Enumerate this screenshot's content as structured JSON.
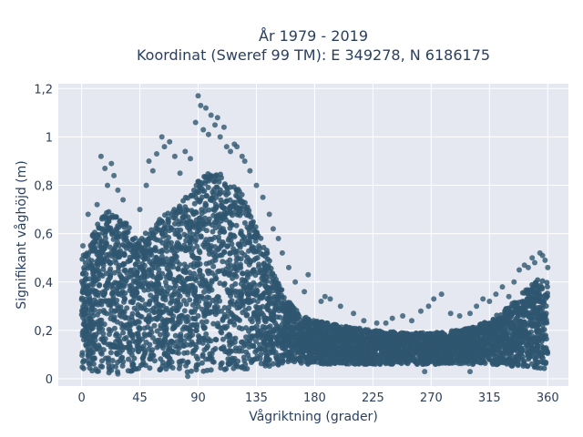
{
  "chart_data": {
    "type": "scatter",
    "title_line1": "År 1979 - 2019",
    "title_line2": "Koordinat (Sweref 99 TM): E 349278, N 6186175",
    "xlabel": "Vågriktning (grader)",
    "ylabel": "Signifikant våghöjd (m)",
    "xlim": [
      -18,
      376
    ],
    "ylim": [
      -0.03,
      1.22
    ],
    "x_ticks": [
      0,
      45,
      90,
      135,
      180,
      225,
      270,
      315,
      360
    ],
    "x_tick_labels": [
      "0",
      "45",
      "90",
      "135",
      "180",
      "225",
      "270",
      "315",
      "360"
    ],
    "y_ticks": [
      0,
      0.2,
      0.4,
      0.6,
      0.8,
      1.0,
      1.2
    ],
    "y_tick_labels": [
      "0",
      "0,2",
      "0,4",
      "0,6",
      "0,8",
      "1",
      "1,2"
    ],
    "grid": true,
    "marker_color": "#2f5670",
    "background_color": "#e5e8f0",
    "envelope": {
      "x": [
        0,
        10,
        20,
        30,
        45,
        60,
        75,
        90,
        100,
        110,
        120,
        130,
        140,
        150,
        160,
        170,
        180,
        200,
        225,
        250,
        270,
        290,
        300,
        315,
        330,
        345,
        355,
        360
      ],
      "y_max": [
        0.5,
        0.62,
        0.7,
        0.68,
        0.58,
        0.66,
        0.72,
        0.82,
        0.86,
        0.84,
        0.8,
        0.7,
        0.58,
        0.42,
        0.32,
        0.26,
        0.24,
        0.22,
        0.2,
        0.19,
        0.19,
        0.2,
        0.21,
        0.24,
        0.3,
        0.38,
        0.42,
        0.4
      ],
      "y_min": [
        0.03,
        0.03,
        0.02,
        0.03,
        0.03,
        0.03,
        0.03,
        0.02,
        0.03,
        0.03,
        0.04,
        0.04,
        0.05,
        0.05,
        0.06,
        0.06,
        0.06,
        0.06,
        0.06,
        0.06,
        0.06,
        0.06,
        0.06,
        0.06,
        0.05,
        0.05,
        0.04,
        0.04
      ]
    },
    "outliers": [
      [
        1,
        0.55
      ],
      [
        5,
        0.68
      ],
      [
        12,
        0.72
      ],
      [
        15,
        0.92
      ],
      [
        18,
        0.87
      ],
      [
        20,
        0.8
      ],
      [
        23,
        0.89
      ],
      [
        25,
        0.84
      ],
      [
        28,
        0.78
      ],
      [
        32,
        0.74
      ],
      [
        45,
        0.7
      ],
      [
        50,
        0.8
      ],
      [
        52,
        0.9
      ],
      [
        55,
        0.86
      ],
      [
        58,
        0.93
      ],
      [
        62,
        1.0
      ],
      [
        64,
        0.96
      ],
      [
        68,
        0.98
      ],
      [
        72,
        0.92
      ],
      [
        76,
        0.85
      ],
      [
        80,
        0.94
      ],
      [
        84,
        0.91
      ],
      [
        88,
        1.06
      ],
      [
        90,
        1.17
      ],
      [
        92,
        1.13
      ],
      [
        94,
        1.03
      ],
      [
        96,
        1.12
      ],
      [
        98,
        1.01
      ],
      [
        100,
        1.09
      ],
      [
        103,
        1.05
      ],
      [
        105,
        1.08
      ],
      [
        107,
        1.0
      ],
      [
        110,
        1.04
      ],
      [
        112,
        0.96
      ],
      [
        115,
        0.94
      ],
      [
        118,
        0.97
      ],
      [
        120,
        0.96
      ],
      [
        124,
        0.92
      ],
      [
        126,
        0.9
      ],
      [
        130,
        0.86
      ],
      [
        135,
        0.8
      ],
      [
        140,
        0.75
      ],
      [
        145,
        0.68
      ],
      [
        148,
        0.62
      ],
      [
        152,
        0.58
      ],
      [
        155,
        0.52
      ],
      [
        160,
        0.46
      ],
      [
        165,
        0.4
      ],
      [
        172,
        0.36
      ],
      [
        175,
        0.43
      ],
      [
        185,
        0.32
      ],
      [
        188,
        0.34
      ],
      [
        192,
        0.33
      ],
      [
        200,
        0.3
      ],
      [
        210,
        0.27
      ],
      [
        218,
        0.24
      ],
      [
        228,
        0.23
      ],
      [
        235,
        0.23
      ],
      [
        240,
        0.25
      ],
      [
        248,
        0.26
      ],
      [
        255,
        0.24
      ],
      [
        262,
        0.28
      ],
      [
        268,
        0.3
      ],
      [
        272,
        0.33
      ],
      [
        278,
        0.35
      ],
      [
        285,
        0.27
      ],
      [
        292,
        0.26
      ],
      [
        300,
        0.27
      ],
      [
        305,
        0.3
      ],
      [
        310,
        0.33
      ],
      [
        315,
        0.32
      ],
      [
        320,
        0.35
      ],
      [
        325,
        0.38
      ],
      [
        330,
        0.34
      ],
      [
        334,
        0.4
      ],
      [
        338,
        0.45
      ],
      [
        342,
        0.47
      ],
      [
        345,
        0.46
      ],
      [
        348,
        0.5
      ],
      [
        350,
        0.48
      ],
      [
        354,
        0.52
      ],
      [
        356,
        0.51
      ],
      [
        358,
        0.49
      ],
      [
        360,
        0.46
      ],
      [
        28,
        0.02
      ],
      [
        82,
        0.01
      ],
      [
        265,
        0.03
      ],
      [
        300,
        0.03
      ]
    ]
  }
}
